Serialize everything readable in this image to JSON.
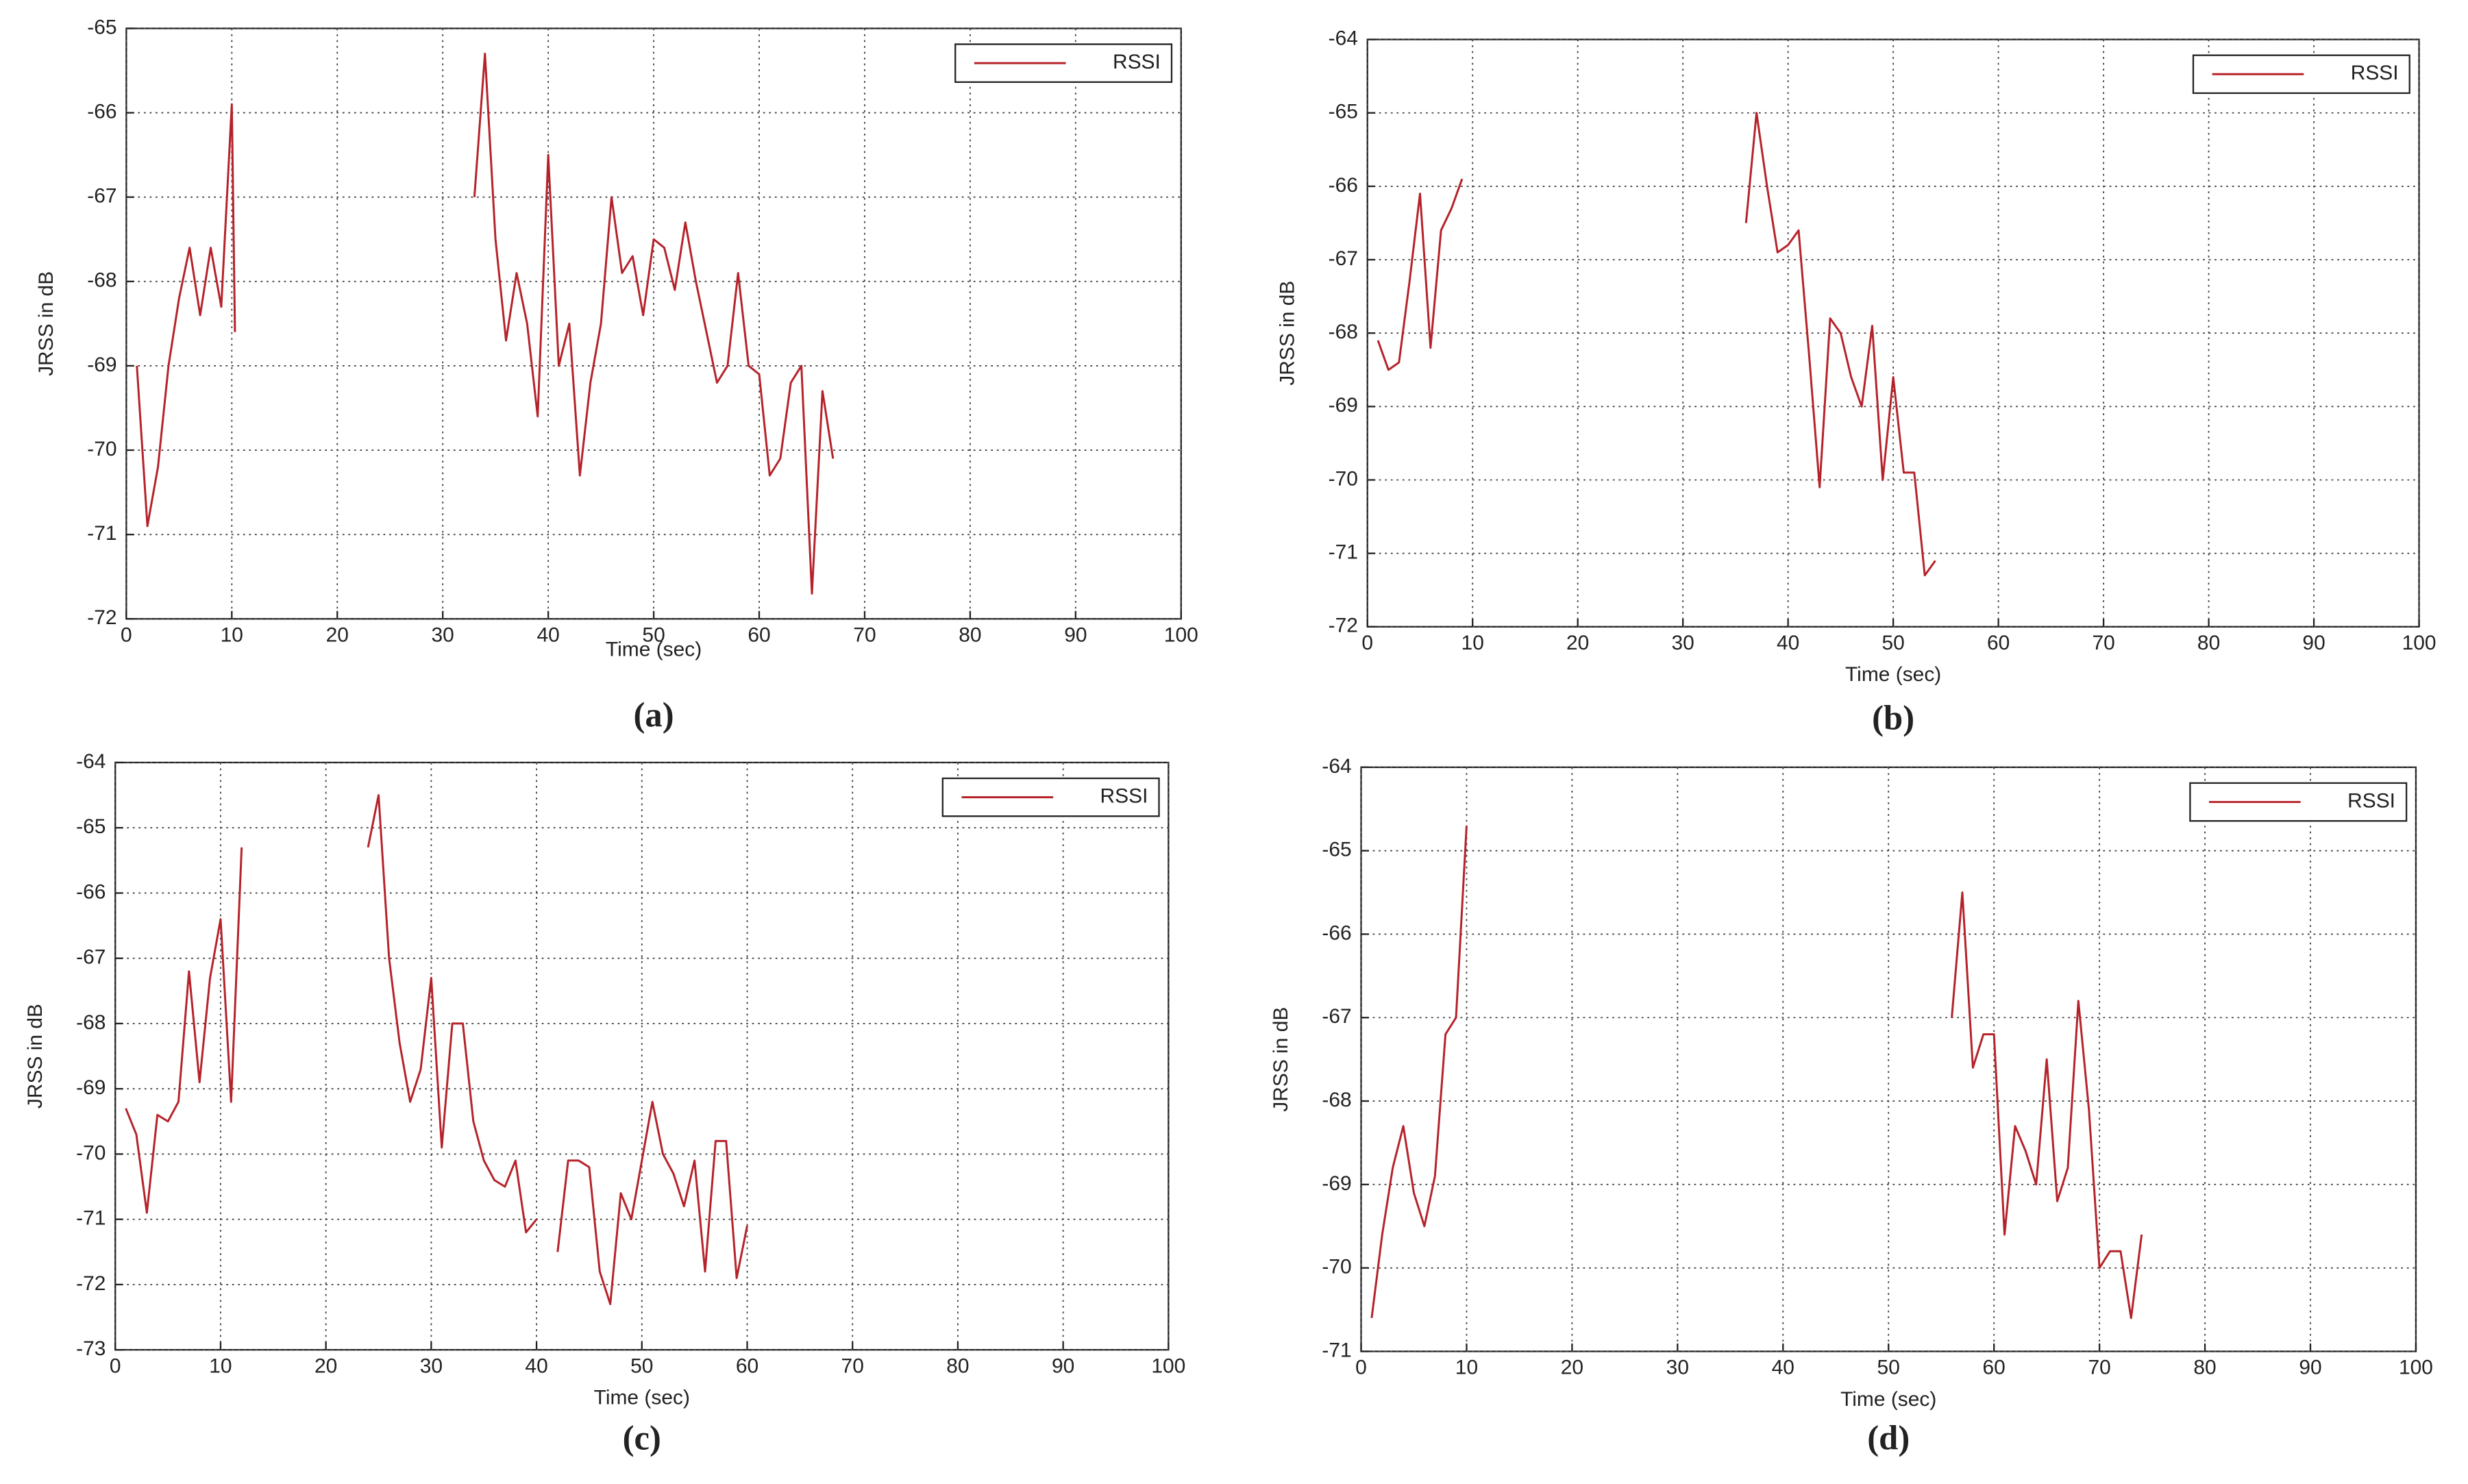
{
  "chart_data": [
    {
      "type": "line",
      "caption": "(a)",
      "xlabel": "Time (sec)",
      "ylabel": "JRSS in dB",
      "xlim": [
        0,
        100
      ],
      "ylim": [
        -72,
        -65
      ],
      "xticks": [
        0,
        10,
        20,
        30,
        40,
        50,
        60,
        70,
        80,
        90,
        100
      ],
      "yticks": [
        -72,
        -71,
        -70,
        -69,
        -68,
        -67,
        -66,
        -65
      ],
      "grid": true,
      "legend": "upper right",
      "x": [
        1,
        2,
        3,
        4,
        5,
        6,
        7,
        8,
        9,
        10,
        10.3,
        null,
        33,
        34,
        35,
        36,
        37,
        38,
        39,
        40,
        41,
        42,
        43,
        44,
        45,
        46,
        47,
        48,
        49,
        50,
        51,
        52,
        53,
        54,
        55,
        56,
        57,
        58,
        59,
        60,
        61,
        62,
        63,
        64,
        65,
        66,
        67
      ],
      "series": [
        {
          "name": "RSSI",
          "color": "#b5232a",
          "values": [
            -69,
            -70.9,
            -70.2,
            -69,
            -68.2,
            -67.6,
            -68.4,
            -67.6,
            -68.3,
            -65.9,
            -68.6,
            null,
            -67,
            -65.3,
            -67.5,
            -68.7,
            -67.9,
            -68.5,
            -69.6,
            -66.5,
            -69,
            -68.5,
            -70.3,
            -69.2,
            -68.5,
            -67,
            -67.9,
            -67.7,
            -68.4,
            -67.5,
            -67.6,
            -68.1,
            -67.3,
            -68,
            -68.6,
            -69.2,
            -69,
            -67.9,
            -69,
            -69.1,
            -70.3,
            -70.1,
            -69.2,
            -69,
            -71.7,
            -69.3,
            -70.1
          ]
        }
      ]
    },
    {
      "type": "line",
      "caption": "(b)",
      "xlabel": "Time (sec)",
      "ylabel": "JRSS in dB",
      "xlim": [
        0,
        100
      ],
      "ylim": [
        -72,
        -64
      ],
      "xticks": [
        0,
        10,
        20,
        30,
        40,
        50,
        60,
        70,
        80,
        90,
        100
      ],
      "yticks": [
        -72,
        -71,
        -70,
        -69,
        -68,
        -67,
        -66,
        -65,
        -64
      ],
      "grid": true,
      "legend": "upper right",
      "x": [
        1,
        2,
        3,
        4,
        5,
        6,
        7,
        8,
        9,
        null,
        36,
        37,
        38,
        39,
        40,
        41,
        42,
        43,
        44,
        45,
        46,
        47,
        48,
        49,
        50,
        51,
        52,
        53,
        54
      ],
      "series": [
        {
          "name": "RSSI",
          "color": "#b5232a",
          "values": [
            -68.1,
            -68.5,
            -68.4,
            -67.3,
            -66.1,
            -68.2,
            -66.6,
            -66.3,
            -65.9,
            null,
            -66.5,
            -65,
            -66,
            -66.9,
            -66.8,
            -66.6,
            -68.3,
            -70.1,
            -67.8,
            -68,
            -68.6,
            -69,
            -67.9,
            -70,
            -68.6,
            -69.9,
            -69.9,
            -71.3,
            -71.1
          ]
        }
      ]
    },
    {
      "type": "line",
      "caption": "(c)",
      "xlabel": "Time (sec)",
      "ylabel": "JRSS in dB",
      "xlim": [
        0,
        100
      ],
      "ylim": [
        -73,
        -64
      ],
      "xticks": [
        0,
        10,
        20,
        30,
        40,
        50,
        60,
        70,
        80,
        90,
        100
      ],
      "yticks": [
        -73,
        -72,
        -71,
        -70,
        -69,
        -68,
        -67,
        -66,
        -65,
        -64
      ],
      "grid": true,
      "legend": "upper right",
      "x": [
        1,
        2,
        3,
        4,
        5,
        6,
        7,
        8,
        9,
        10,
        11,
        12,
        null,
        24,
        25,
        26,
        27,
        28,
        29,
        30,
        31,
        32,
        33,
        34,
        35,
        36,
        37,
        38,
        39,
        40,
        null,
        42,
        43,
        44,
        45,
        46,
        47,
        48,
        49,
        50,
        51,
        52,
        53,
        54,
        55,
        56,
        57,
        58,
        59,
        60
      ],
      "series": [
        {
          "name": "RSSI",
          "color": "#b5232a",
          "values": [
            -69.3,
            -69.7,
            -70.9,
            -69.4,
            -69.5,
            -69.2,
            -67.2,
            -68.9,
            -67.3,
            -66.4,
            -69.2,
            -65.3,
            null,
            -65.3,
            -64.5,
            -67,
            -68.3,
            -69.2,
            -68.7,
            -67.3,
            -69.9,
            -68,
            -68,
            -69.5,
            -70.1,
            -70.4,
            -70.5,
            -70.1,
            -71.2,
            -71,
            null,
            -71.5,
            -70.1,
            -70.1,
            -70.2,
            -71.8,
            -72.3,
            -70.6,
            -71,
            -70.1,
            -69.2,
            -70,
            -70.3,
            -70.8,
            -70.1,
            -71.8,
            -69.8,
            -69.8,
            -71.9,
            -71.1
          ]
        }
      ]
    },
    {
      "type": "line",
      "caption": "(d)",
      "xlabel": "Time (sec)",
      "ylabel": "JRSS in dB",
      "xlim": [
        0,
        100
      ],
      "ylim": [
        -71,
        -64
      ],
      "xticks": [
        0,
        10,
        20,
        30,
        40,
        50,
        60,
        70,
        80,
        90,
        100
      ],
      "yticks": [
        -71,
        -70,
        -69,
        -68,
        -67,
        -66,
        -65,
        -64
      ],
      "grid": true,
      "legend": "upper right",
      "x": [
        1,
        2,
        3,
        4,
        5,
        6,
        7,
        8,
        9,
        10,
        null,
        56,
        57,
        58,
        59,
        60,
        61,
        62,
        63,
        64,
        65,
        66,
        67,
        68,
        69,
        70,
        71,
        72,
        73,
        74
      ],
      "series": [
        {
          "name": "RSSI",
          "color": "#b5232a",
          "values": [
            -70.6,
            -69.6,
            -68.8,
            -68.3,
            -69.1,
            -69.5,
            -68.9,
            -67.2,
            -67,
            -64.7,
            null,
            -67,
            -65.5,
            -67.6,
            -67.2,
            -67.2,
            -69.6,
            -68.3,
            -68.6,
            -69,
            -67.5,
            -69.2,
            -68.8,
            -66.8,
            -68.1,
            -70,
            -69.8,
            -69.8,
            -70.6,
            -69.6
          ]
        }
      ]
    }
  ]
}
